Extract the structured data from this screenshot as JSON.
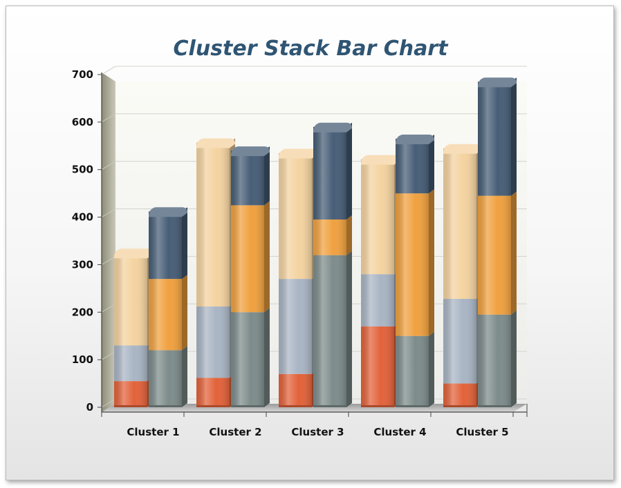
{
  "chart_data": {
    "type": "bar",
    "subtype": "clustered-stacked-3d",
    "title": "Cluster Stack Bar Chart",
    "xlabel": "",
    "ylabel": "",
    "ylim": [
      0,
      700
    ],
    "yticks": [
      "0",
      "100",
      "200",
      "300",
      "400",
      "500",
      "600",
      "700"
    ],
    "categories": [
      "Cluster 1",
      "Cluster 2",
      "Cluster 3",
      "Cluster 4",
      "Cluster 5"
    ],
    "grid": true,
    "legend": "none",
    "stacks": [
      {
        "position": "left",
        "series": [
          {
            "color": "#e2623a",
            "values": [
              55,
              62,
              70,
              170,
              50
            ]
          },
          {
            "color": "#a9b5c4",
            "values": [
              75,
              150,
              200,
              110,
              178
            ]
          },
          {
            "color": "#f4d3a0",
            "values": [
              195,
              345,
              265,
              242,
              317
            ]
          }
        ]
      },
      {
        "position": "right",
        "series": [
          {
            "color": "#7d8c8b",
            "values": [
              120,
              200,
              320,
              150,
              195
            ]
          },
          {
            "color": "#f0a13f",
            "values": [
              150,
              225,
              75,
              300,
              250
            ]
          },
          {
            "color": "#475e77",
            "values": [
              142,
              115,
              195,
              115,
              240
            ]
          }
        ]
      }
    ]
  }
}
